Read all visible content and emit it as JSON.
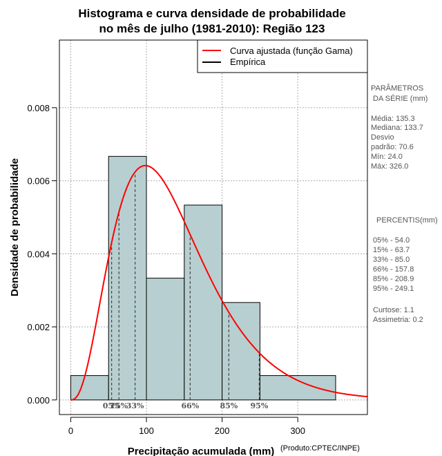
{
  "chart_data": {
    "type": "bar",
    "title_line1": "Histograma e curva densidade de probabilidade",
    "title_line2": "no mês de julho (1981-2010): Região 123",
    "xlabel": "Precipitação acumulada (mm)",
    "ylabel": "Densidade de probabilidade",
    "credit": "(Produto:CPTEC/INPE)",
    "xlim": [
      -15,
      392
    ],
    "ylim": [
      -0.0004,
      0.00985
    ],
    "x_ticks": [
      0,
      100,
      200,
      300
    ],
    "y_ticks": [
      0.0,
      0.002,
      0.004,
      0.006,
      0.008
    ],
    "y_tick_labels": [
      "0.000",
      "0.002",
      "0.004",
      "0.006",
      "0.008"
    ],
    "grid_x": [
      0,
      100,
      200,
      300
    ],
    "grid_y": [
      0.0,
      0.002,
      0.004,
      0.006,
      0.008
    ],
    "bins": [
      {
        "x0": 0,
        "x1": 50,
        "density": 0.000667
      },
      {
        "x0": 50,
        "x1": 100,
        "density": 0.006667
      },
      {
        "x0": 100,
        "x1": 150,
        "density": 0.003333
      },
      {
        "x0": 150,
        "x1": 200,
        "density": 0.005333
      },
      {
        "x0": 200,
        "x1": 250,
        "density": 0.002667
      },
      {
        "x0": 250,
        "x1": 350,
        "density": 0.000667
      }
    ],
    "gamma_fit": {
      "shape": 3.67,
      "scale": 36.9,
      "x_from": 0,
      "x_to": 392
    },
    "percentile_lines": [
      {
        "label": "05%",
        "value": 54.0
      },
      {
        "label": "15%",
        "value": 63.7
      },
      {
        "label": "33%",
        "value": 85.0
      },
      {
        "label": "66%",
        "value": 157.8
      },
      {
        "label": "85%",
        "value": 208.9
      },
      {
        "label": "95%",
        "value": 249.1
      }
    ],
    "percentile_axis_text": [
      "05%",
      "15%",
      "33%",
      "66%",
      "85%",
      "95%"
    ],
    "legend": {
      "position": "top-right",
      "entries": [
        {
          "label": "Curva ajustada (função Gama)",
          "color": "#ff0000"
        },
        {
          "label": "Empírica",
          "color": "#000000"
        }
      ]
    },
    "colors": {
      "bar_fill": "#b7cfd0",
      "curve": "#ff0000",
      "grid": "#aaaaaa"
    }
  },
  "side_panel": {
    "params_title_1": "PARÂMETROS",
    "params_title_2": "DA SÉRIE (mm)",
    "media": "Média:  135.3",
    "mediana": "Mediana:  133.7",
    "desvio_1": "Desvio",
    "desvio_2": "padrão:  70.6",
    "min": "Mín:  24.0",
    "max": "Máx:  326.0",
    "percentis_title": "PERCENTIS(mm)",
    "p05": "05% -  54.0",
    "p15": "15% -  63.7",
    "p33": "33% -  85.0",
    "p66": "66% -  157.8",
    "p85": "85% -  208.9",
    "p95": "95% -  249.1",
    "curtose": "Curtose:  1.1",
    "assimetria": "Assimetria:  0.2"
  }
}
